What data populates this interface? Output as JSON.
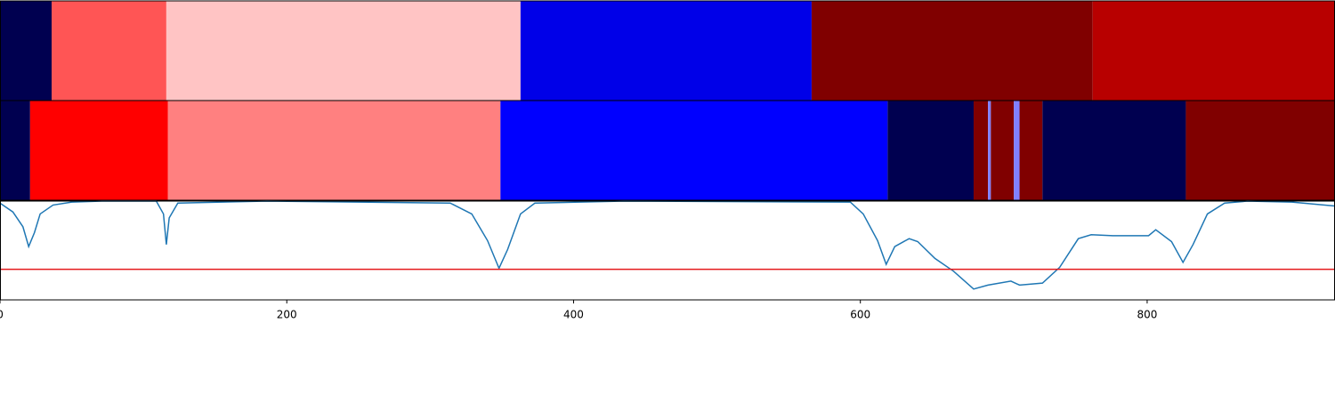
{
  "chart_data": [
    {
      "type": "segments",
      "xlim": [
        0,
        931
      ],
      "breaks": [
        0,
        36,
        116,
        363,
        566,
        762,
        931
      ],
      "colors": [
        "#000050",
        "#ff5555",
        "#ffc4c4",
        "#0000e8",
        "#800000",
        "#b80000"
      ]
    },
    {
      "type": "segments",
      "xlim": [
        0,
        931
      ],
      "breaks": [
        0,
        21,
        117,
        349,
        619,
        679,
        689,
        691,
        707,
        711,
        727,
        827,
        931
      ],
      "colors": [
        "#000050",
        "#ff0000",
        "#ff8080",
        "#0000ff",
        "#000050",
        "#800000",
        "#8080ff",
        "#800000",
        "#8080ff",
        "#800000",
        "#000050",
        "#800000"
      ]
    },
    {
      "type": "line",
      "xlim": [
        0,
        931
      ],
      "ylim": [
        0,
        1
      ],
      "xticks": [
        0,
        200,
        400,
        600,
        800
      ],
      "color": "#1f77b4",
      "threshold": 0.31,
      "threshold_color": "#e41a1c",
      "x": [
        0,
        9,
        16,
        20,
        24,
        28,
        37,
        50,
        71,
        109,
        114,
        116,
        118,
        124,
        186,
        314,
        329,
        340,
        348,
        354,
        363,
        373,
        435,
        593,
        602,
        612,
        618,
        624,
        634,
        640,
        652,
        665,
        679,
        689,
        705,
        711,
        727,
        739,
        752,
        761,
        776,
        801,
        806,
        817,
        825,
        832,
        842,
        854,
        870,
        901,
        931
      ],
      "values": [
        0.98,
        0.89,
        0.74,
        0.54,
        0.68,
        0.87,
        0.96,
        0.99,
        1.0,
        1.0,
        0.87,
        0.56,
        0.83,
        0.98,
        1.0,
        0.98,
        0.87,
        0.6,
        0.32,
        0.51,
        0.87,
        0.98,
        1.0,
        0.99,
        0.87,
        0.6,
        0.36,
        0.54,
        0.62,
        0.59,
        0.42,
        0.29,
        0.11,
        0.15,
        0.19,
        0.15,
        0.17,
        0.33,
        0.62,
        0.66,
        0.65,
        0.65,
        0.71,
        0.59,
        0.38,
        0.56,
        0.87,
        0.98,
        1.0,
        0.99,
        0.95
      ]
    }
  ]
}
